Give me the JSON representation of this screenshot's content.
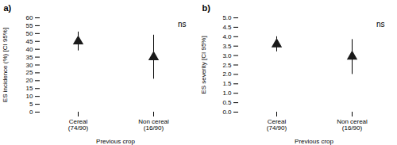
{
  "chart_data": [
    {
      "type": "scatter",
      "title": "a)",
      "categories": [
        "Cereal\n(74/90)",
        "Non cereal\n(16/90)"
      ],
      "values": [
        45,
        35
      ],
      "ci_lower": [
        39,
        21
      ],
      "ci_upper": [
        51,
        49
      ],
      "ylabel": "ES incidence (%) [CI 95%]",
      "xlabel": "Previous crop",
      "ylim": [
        0,
        60
      ],
      "yticks": [
        0,
        5,
        10,
        15,
        20,
        25,
        30,
        35,
        40,
        45,
        50,
        55,
        60
      ],
      "annotations": [
        "ns"
      ],
      "marker": "triangle",
      "color": "#1a1a1a"
    },
    {
      "type": "scatter",
      "title": "b)",
      "categories": [
        "Cereal\n(74/90)",
        "Non cereal\n(16/90)"
      ],
      "values": [
        3.6,
        2.95
      ],
      "ci_lower": [
        3.2,
        2.0
      ],
      "ci_upper": [
        4.0,
        3.85
      ],
      "ylabel": "ES severity [CI 95%]",
      "xlabel": "Previous crop",
      "ylim": [
        0,
        5.0
      ],
      "yticks": [
        {
          "value": 0,
          "label": "0.0"
        },
        0.5,
        {
          "value": 1,
          "label": "1.0"
        },
        1.5,
        {
          "value": 2,
          "label": "2.0"
        },
        2.5,
        {
          "value": 3,
          "label": "3.0"
        },
        3.5,
        {
          "value": 4,
          "label": "4.0"
        },
        4.5,
        {
          "value": 5,
          "label": "5.0"
        }
      ],
      "annotations": [
        "ns"
      ],
      "marker": "triangle",
      "color": "#1a1a1a"
    }
  ]
}
